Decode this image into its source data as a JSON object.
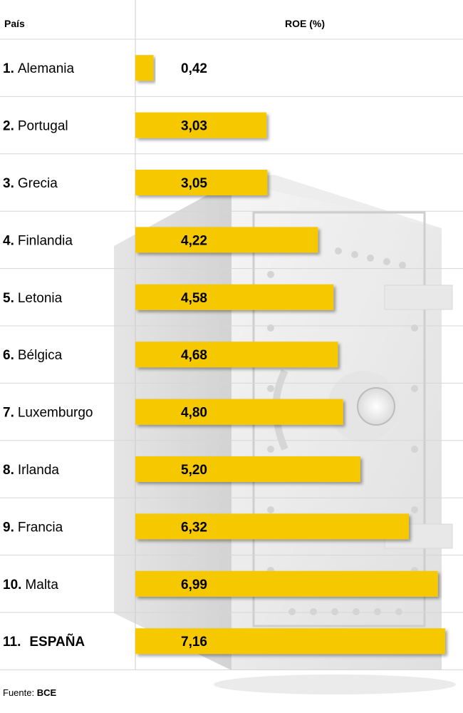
{
  "chart_data": {
    "type": "bar",
    "orientation": "horizontal",
    "headers": {
      "country": "País",
      "value": "ROE (%)"
    },
    "categories": [
      {
        "rank": "1.",
        "name": "Alemania"
      },
      {
        "rank": "2.",
        "name": "Portugal"
      },
      {
        "rank": "3.",
        "name": "Grecia"
      },
      {
        "rank": "4.",
        "name": "Finlandia"
      },
      {
        "rank": "5.",
        "name": "Letonia"
      },
      {
        "rank": "6.",
        "name": "Bélgica"
      },
      {
        "rank": "7.",
        "name": "Luxemburgo"
      },
      {
        "rank": "8.",
        "name": "Irlanda"
      },
      {
        "rank": "9.",
        "name": "Francia"
      },
      {
        "rank": "10.",
        "name": "Malta"
      },
      {
        "rank": "11.",
        "name": "ESPAÑA"
      }
    ],
    "values": [
      0.42,
      3.03,
      3.05,
      4.22,
      4.58,
      4.68,
      4.8,
      5.2,
      6.32,
      6.99,
      7.16
    ],
    "value_labels": [
      "0,42",
      "3,03",
      "3,05",
      "4,22",
      "4,58",
      "4,68",
      "4,80",
      "5,20",
      "6,32",
      "6,99",
      "7,16"
    ],
    "xlim": [
      0,
      7.16
    ],
    "bar_color": "#f5c800",
    "grid": true,
    "legend": "none",
    "background_illustration": "safe-icon"
  },
  "source": {
    "label": "Fuente:",
    "value": "BCE"
  }
}
